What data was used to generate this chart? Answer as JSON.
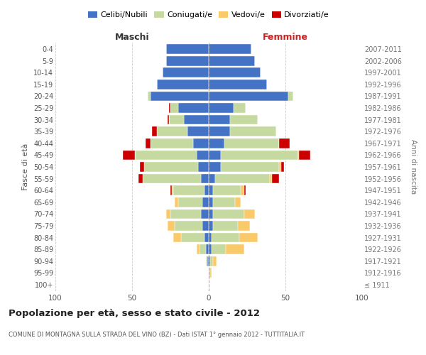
{
  "age_groups": [
    "100+",
    "95-99",
    "90-94",
    "85-89",
    "80-84",
    "75-79",
    "70-74",
    "65-69",
    "60-64",
    "55-59",
    "50-54",
    "45-49",
    "40-44",
    "35-39",
    "30-34",
    "25-29",
    "20-24",
    "15-19",
    "10-14",
    "5-9",
    "0-4"
  ],
  "birth_years": [
    "≤ 1911",
    "1912-1916",
    "1917-1921",
    "1922-1926",
    "1927-1931",
    "1932-1936",
    "1937-1941",
    "1942-1946",
    "1947-1951",
    "1952-1956",
    "1957-1961",
    "1962-1966",
    "1967-1971",
    "1972-1976",
    "1977-1981",
    "1982-1986",
    "1987-1991",
    "1992-1996",
    "1997-2001",
    "2002-2006",
    "2007-2011"
  ],
  "colors": {
    "celibi": "#4472c4",
    "coniugati": "#c5d9a0",
    "vedovi": "#fac96a",
    "divorziati": "#cc0000"
  },
  "maschi": {
    "celibi": [
      0,
      0,
      1,
      2,
      3,
      4,
      5,
      4,
      3,
      5,
      7,
      8,
      10,
      14,
      16,
      20,
      38,
      34,
      30,
      28,
      28
    ],
    "coniugati": [
      0,
      0,
      1,
      4,
      15,
      18,
      20,
      16,
      20,
      38,
      35,
      40,
      28,
      20,
      10,
      5,
      2,
      0,
      0,
      0,
      0
    ],
    "vedovi": [
      0,
      0,
      0,
      2,
      5,
      5,
      3,
      2,
      1,
      0,
      0,
      0,
      0,
      0,
      0,
      0,
      0,
      0,
      0,
      0,
      0
    ],
    "divorziati": [
      0,
      0,
      0,
      0,
      0,
      0,
      0,
      0,
      1,
      3,
      3,
      8,
      3,
      3,
      1,
      1,
      0,
      0,
      0,
      0,
      0
    ]
  },
  "femmine": {
    "celibi": [
      0,
      0,
      1,
      2,
      2,
      3,
      3,
      3,
      3,
      4,
      8,
      8,
      10,
      14,
      14,
      16,
      52,
      38,
      34,
      30,
      28
    ],
    "coniugati": [
      0,
      1,
      2,
      9,
      18,
      16,
      20,
      14,
      18,
      36,
      38,
      50,
      36,
      30,
      18,
      8,
      3,
      0,
      0,
      0,
      0
    ],
    "vedovi": [
      0,
      1,
      2,
      12,
      12,
      8,
      7,
      4,
      2,
      1,
      1,
      1,
      0,
      0,
      0,
      0,
      0,
      0,
      0,
      0,
      0
    ],
    "divorziati": [
      0,
      0,
      0,
      0,
      0,
      0,
      0,
      0,
      1,
      5,
      2,
      7,
      7,
      0,
      0,
      0,
      0,
      0,
      0,
      0,
      0
    ]
  },
  "title": "Popolazione per età, sesso e stato civile - 2012",
  "subtitle": "COMUNE DI MONTAGNA SULLA STRADA DEL VINO (BZ) - Dati ISTAT 1° gennaio 2012 - TUTTITALIA.IT",
  "xlabel_left": "Maschi",
  "xlabel_right": "Femmine",
  "ylabel": "Fasce di età",
  "ylabel_right": "Anni di nascita",
  "xlim": 100,
  "legend_labels": [
    "Celibi/Nubili",
    "Coniugati/e",
    "Vedovi/e",
    "Divorziati/e"
  ],
  "background_color": "#ffffff",
  "grid_color": "#cccccc"
}
